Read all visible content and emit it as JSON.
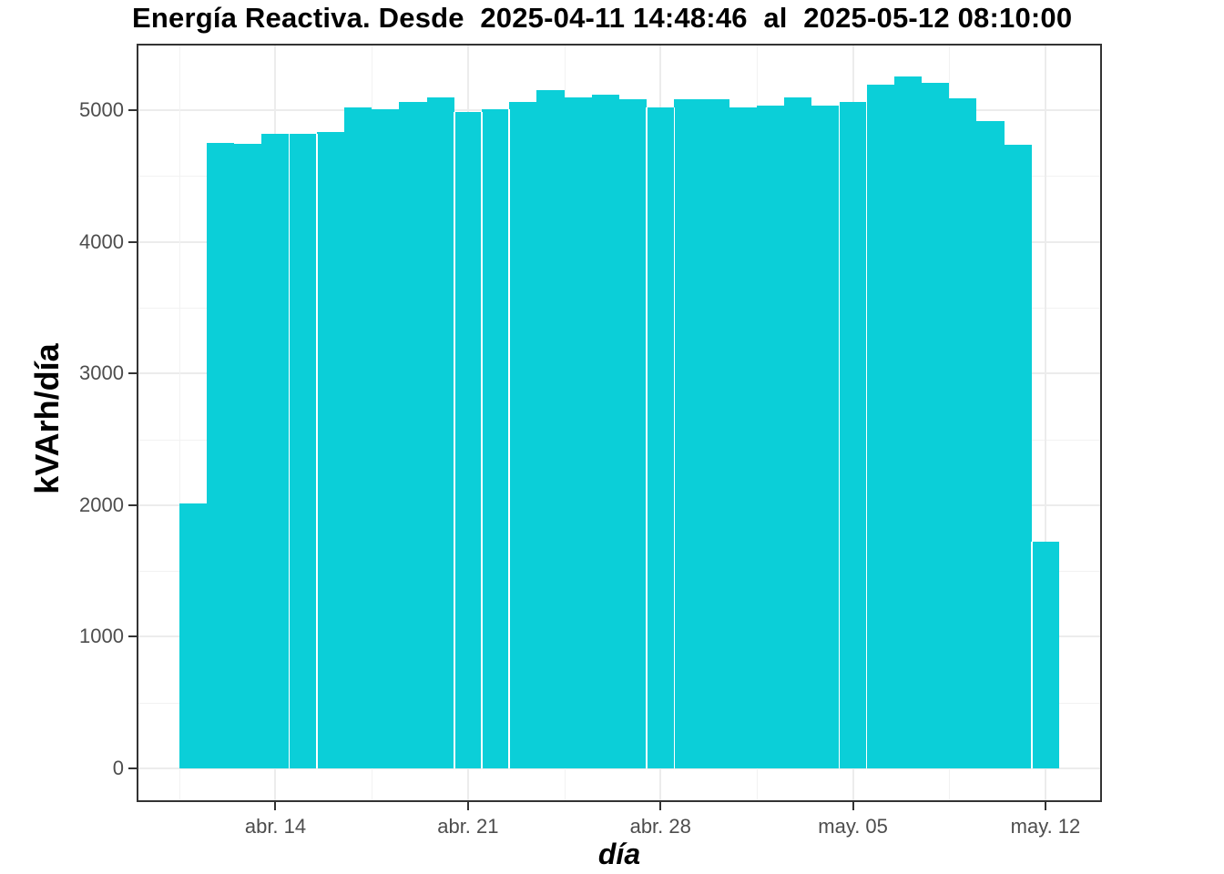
{
  "title": "Energía Reactiva. Desde  2025-04-11 14:48:46  al  2025-05-12 08:10:00",
  "colors": {
    "bar": "#0bcfd8",
    "grid_major": "#ececec",
    "grid_minor": "#f2f2f2",
    "panel_border": "#333333",
    "axis_text": "#4d4d4d",
    "tick_mark": "#333333",
    "title_text": "#000000",
    "background": "#ffffff"
  },
  "chart_data": {
    "type": "bar",
    "title": "Energía Reactiva. Desde  2025-04-11 14:48:46  al  2025-05-12 08:10:00",
    "xlabel": "día",
    "ylabel": "kVArh/día",
    "categories": [
      "2025-04-11",
      "2025-04-12",
      "2025-04-13",
      "2025-04-14",
      "2025-04-15",
      "2025-04-16",
      "2025-04-17",
      "2025-04-18",
      "2025-04-19",
      "2025-04-20",
      "2025-04-21",
      "2025-04-22",
      "2025-04-23",
      "2025-04-24",
      "2025-04-25",
      "2025-04-26",
      "2025-04-27",
      "2025-04-28",
      "2025-04-29",
      "2025-04-30",
      "2025-05-01",
      "2025-05-02",
      "2025-05-03",
      "2025-05-04",
      "2025-05-05",
      "2025-05-06",
      "2025-05-07",
      "2025-05-08",
      "2025-05-09",
      "2025-05-10",
      "2025-05-11",
      "2025-05-12"
    ],
    "values": [
      2010,
      4750,
      4745,
      4820,
      4820,
      4835,
      5020,
      5005,
      5060,
      5095,
      4985,
      5005,
      5060,
      5150,
      5095,
      5120,
      5085,
      5020,
      5085,
      5085,
      5020,
      5035,
      5095,
      5035,
      5060,
      5195,
      5255,
      5205,
      5090,
      4915,
      4735,
      1720
    ],
    "y_ticks": [
      0,
      1000,
      2000,
      3000,
      4000,
      5000
    ],
    "y_minor_ticks": [
      500,
      1500,
      2500,
      3500,
      4500
    ],
    "x_tick_labels": [
      "abr. 14",
      "abr. 21",
      "abr. 28",
      "may. 05",
      "may. 12"
    ],
    "x_tick_day_index": [
      3,
      10,
      17,
      24,
      31
    ],
    "x_minor_day_index": [
      -0.5,
      6.5,
      13.5,
      20.5,
      27.5
    ],
    "ylim": [
      0,
      5500
    ],
    "grid": true,
    "legend": false,
    "white_seam_after_index": [
      3,
      4,
      9,
      10,
      11,
      16,
      17,
      23,
      24,
      30
    ]
  }
}
